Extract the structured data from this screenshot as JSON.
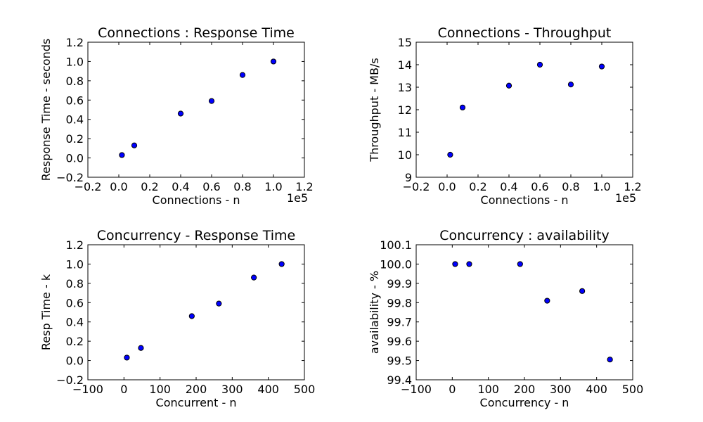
{
  "chart_data": [
    {
      "type": "scatter",
      "title": "Connections : Response Time",
      "xlabel": "Connections - n",
      "ylabel": "Response Time - seconds",
      "x_offset_label": "1e5",
      "xlim": [
        -0.2,
        1.2
      ],
      "ylim": [
        -0.2,
        1.2
      ],
      "xticks": [
        "−0.2",
        "0.0",
        "0.2",
        "0.4",
        "0.6",
        "0.8",
        "1.0",
        "1.2"
      ],
      "yticks": [
        "−0.2",
        "0.0",
        "0.2",
        "0.4",
        "0.6",
        "0.8",
        "1.0",
        "1.2"
      ],
      "x": [
        0.02,
        0.1,
        0.4,
        0.6,
        0.8,
        1.0
      ],
      "y": [
        0.03,
        0.13,
        0.46,
        0.59,
        0.86,
        1.0
      ],
      "marker_color": "#0000ff"
    },
    {
      "type": "scatter",
      "title": "Connections - Throughput",
      "xlabel": "Connections - n",
      "ylabel": "Throughput - MB/s",
      "x_offset_label": "1e5",
      "xlim": [
        -0.2,
        1.2
      ],
      "ylim": [
        9,
        15
      ],
      "xticks": [
        "−0.2",
        "0.0",
        "0.2",
        "0.4",
        "0.6",
        "0.8",
        "1.0",
        "1.2"
      ],
      "yticks": [
        "9",
        "10",
        "11",
        "12",
        "13",
        "14",
        "15"
      ],
      "x": [
        0.02,
        0.1,
        0.4,
        0.6,
        0.8,
        1.0
      ],
      "y": [
        10.0,
        12.1,
        13.07,
        14.0,
        13.12,
        13.92
      ],
      "marker_color": "#0000ff"
    },
    {
      "type": "scatter",
      "title": "Concurrency - Response Time",
      "xlabel": "Concurrent - n",
      "ylabel": "Resp Time - k",
      "x_offset_label": "",
      "xlim": [
        -100,
        500
      ],
      "ylim": [
        -0.2,
        1.2
      ],
      "xticks": [
        "−100",
        "0",
        "100",
        "200",
        "300",
        "400",
        "500"
      ],
      "yticks": [
        "−0.2",
        "0.0",
        "0.2",
        "0.4",
        "0.6",
        "0.8",
        "1.0",
        "1.2"
      ],
      "x": [
        8,
        47,
        188,
        263,
        360,
        437
      ],
      "y": [
        0.03,
        0.13,
        0.46,
        0.59,
        0.86,
        1.0
      ],
      "marker_color": "#0000ff"
    },
    {
      "type": "scatter",
      "title": "Concurrency : availability",
      "xlabel": "Concurrency - n",
      "ylabel": "availability - %",
      "x_offset_label": "",
      "xlim": [
        -100,
        500
      ],
      "ylim": [
        99.4,
        100.1
      ],
      "xticks": [
        "−100",
        "0",
        "100",
        "200",
        "300",
        "400",
        "500"
      ],
      "yticks": [
        "99.4",
        "99.5",
        "99.6",
        "99.7",
        "99.8",
        "99.9",
        "100.0",
        "100.1"
      ],
      "x": [
        8,
        47,
        188,
        263,
        360,
        437
      ],
      "y": [
        100.0,
        100.0,
        100.0,
        99.81,
        99.86,
        99.505
      ],
      "marker_color": "#0000ff"
    }
  ]
}
